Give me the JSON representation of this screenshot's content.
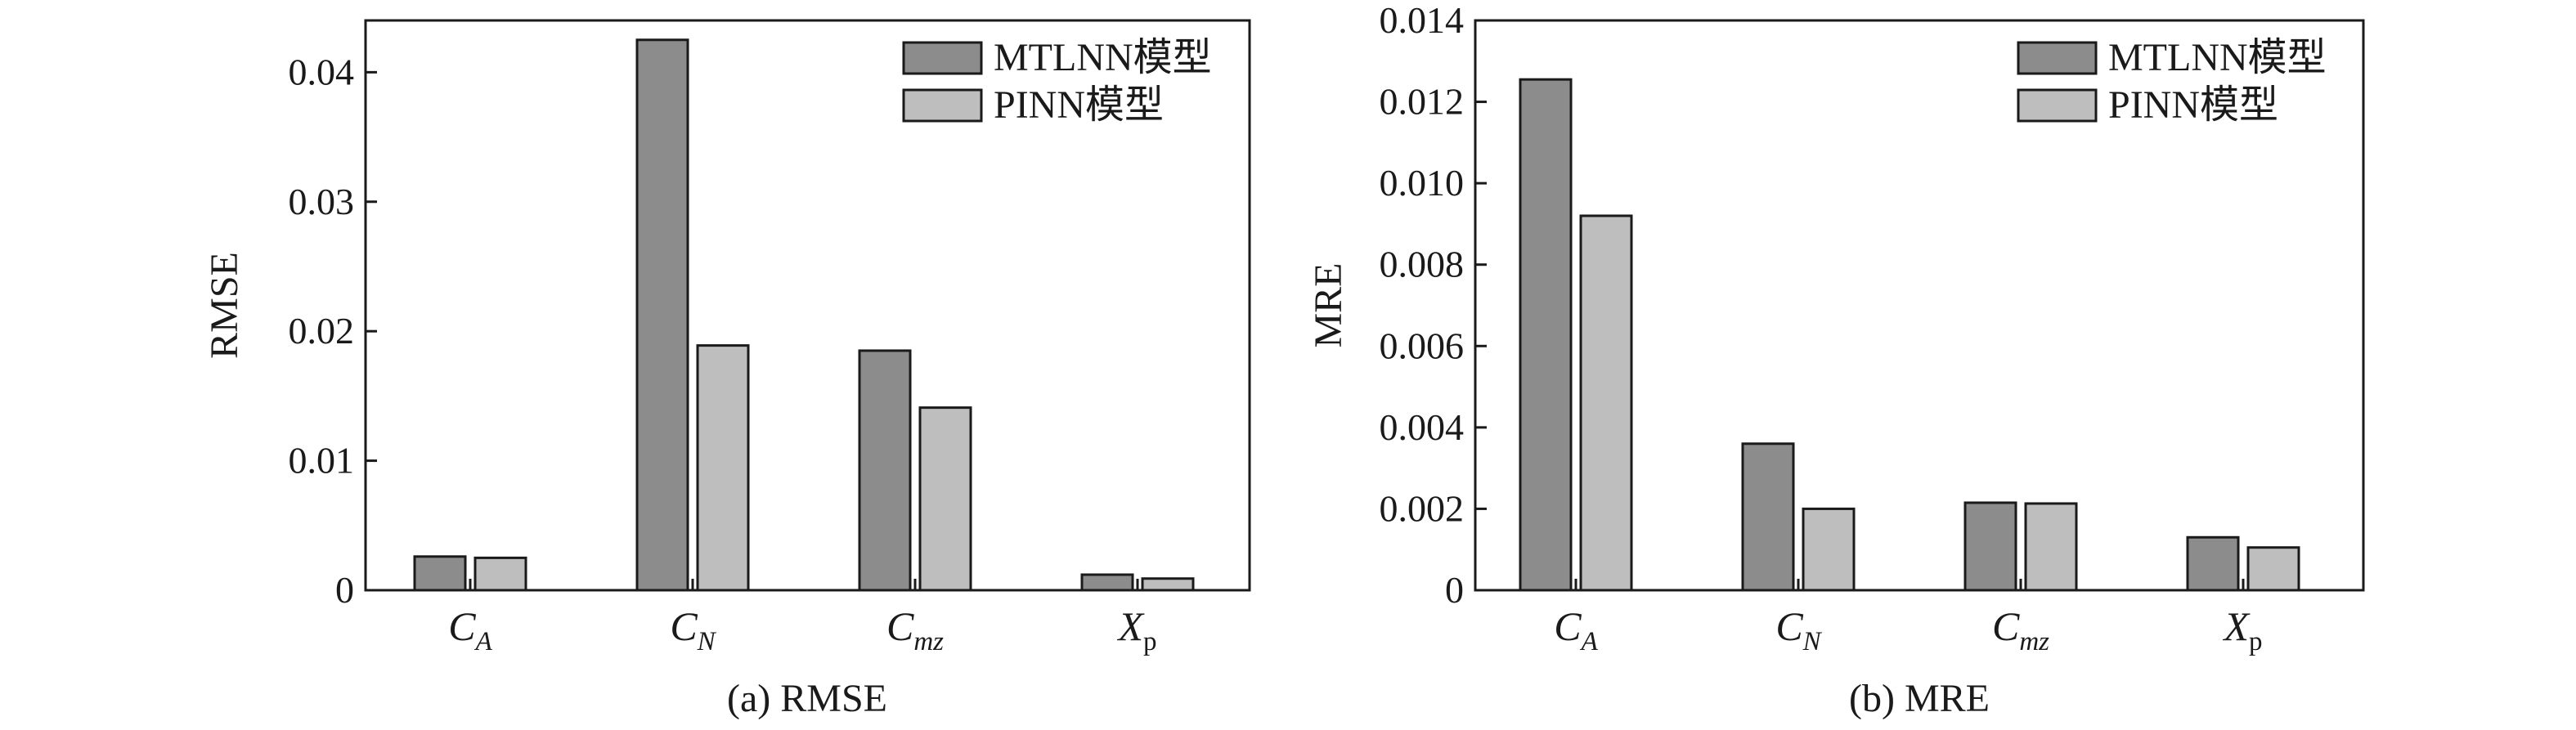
{
  "colors": {
    "series_dark": "#8c8c8c",
    "series_light": "#bebebe",
    "axis": "#1a1a1a"
  },
  "chart_data": [
    {
      "type": "bar",
      "panel_label": "(a) RMSE",
      "ylabel": "RMSE",
      "xlabel": "",
      "ylim": [
        0,
        0.044
      ],
      "yticks": [
        "0",
        "0.01",
        "0.02",
        "0.03",
        "0.04"
      ],
      "ytick_values": [
        0,
        0.01,
        0.02,
        0.03,
        0.04
      ],
      "grid": false,
      "legend_placement": "top-right",
      "categories": [
        {
          "main": "C",
          "sub": "A",
          "sub_italic": true
        },
        {
          "main": "C",
          "sub": "N",
          "sub_italic": true
        },
        {
          "main": "C",
          "sub": "mz",
          "sub_italic": true
        },
        {
          "main": "X",
          "sub": "p",
          "sub_italic": false
        }
      ],
      "series": [
        {
          "name": "MTLNN模型",
          "color": "#8c8c8c",
          "values": [
            0.0026,
            0.0425,
            0.0185,
            0.0012
          ]
        },
        {
          "name": "PINN模型",
          "color": "#bebebe",
          "values": [
            0.0025,
            0.0189,
            0.0141,
            0.0009
          ]
        }
      ]
    },
    {
      "type": "bar",
      "panel_label": "(b) MRE",
      "ylabel": "MRE",
      "xlabel": "",
      "ylim": [
        0,
        0.014
      ],
      "yticks": [
        "0",
        "0.002",
        "0.004",
        "0.006",
        "0.008",
        "0.010",
        "0.012",
        "0.014"
      ],
      "ytick_values": [
        0,
        0.002,
        0.004,
        0.006,
        0.008,
        0.01,
        0.012,
        0.014
      ],
      "grid": false,
      "legend_placement": "top-right",
      "categories": [
        {
          "main": "C",
          "sub": "A",
          "sub_italic": true
        },
        {
          "main": "C",
          "sub": "N",
          "sub_italic": true
        },
        {
          "main": "C",
          "sub": "mz",
          "sub_italic": true
        },
        {
          "main": "X",
          "sub": "p",
          "sub_italic": false
        }
      ],
      "series": [
        {
          "name": "MTLNN模型",
          "color": "#8c8c8c",
          "values": [
            0.01255,
            0.0036,
            0.00215,
            0.0013
          ]
        },
        {
          "name": "PINN模型",
          "color": "#bebebe",
          "values": [
            0.0092,
            0.002,
            0.00213,
            0.00105
          ]
        }
      ]
    }
  ]
}
